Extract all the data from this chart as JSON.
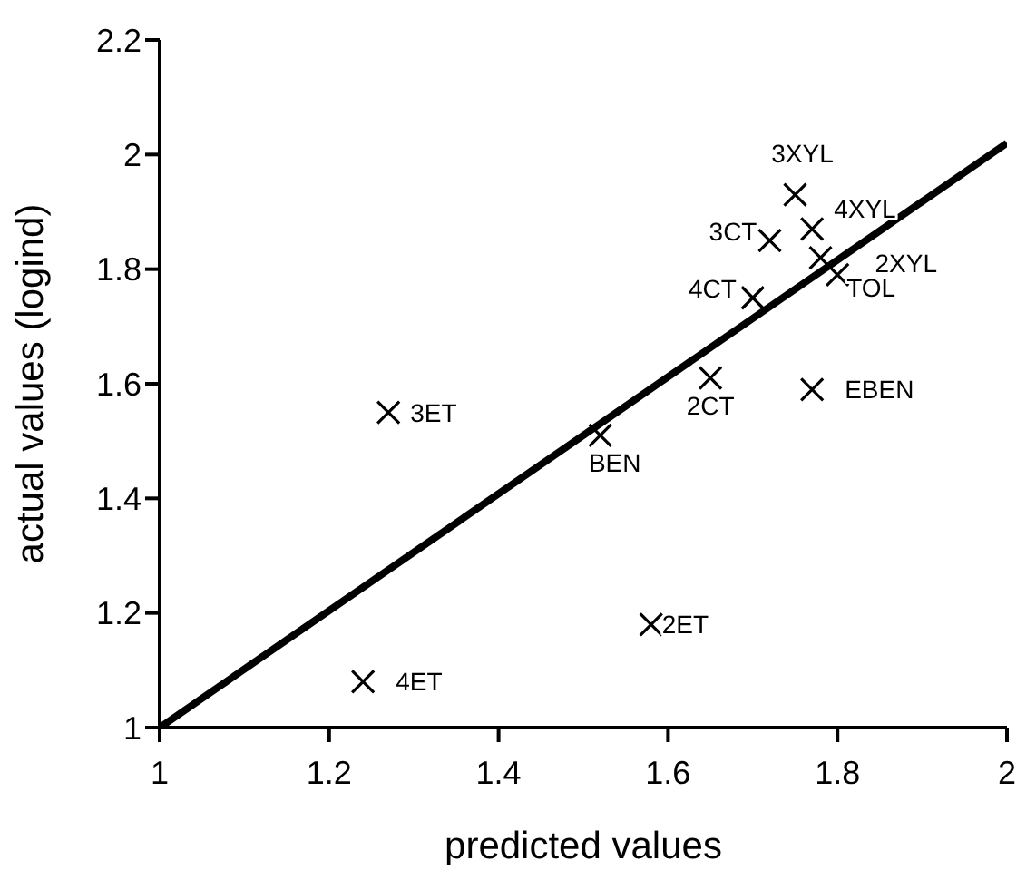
{
  "chart_data": {
    "type": "scatter",
    "xlabel": "predicted values",
    "ylabel": "actual values (logind)",
    "xlim": [
      1,
      2
    ],
    "xticks": [
      1,
      1.2,
      1.4,
      1.6,
      1.8,
      2
    ],
    "ylim": [
      1,
      2.2
    ],
    "yticks": [
      1,
      1.2,
      1.4,
      1.6,
      1.8,
      2,
      2.2
    ],
    "grid": false,
    "legend": false,
    "series": [
      {
        "type": "scatter",
        "color": "#000000",
        "marker": "cross",
        "x": [
          1.27,
          1.24,
          1.52,
          1.65,
          1.58,
          1.77,
          1.7,
          1.72,
          1.75,
          1.77,
          1.78,
          1.8
        ],
        "values": [
          1.55,
          1.08,
          1.51,
          1.61,
          1.18,
          1.59,
          1.75,
          1.85,
          1.93,
          1.87,
          1.82,
          1.79
        ]
      },
      {
        "type": "line",
        "color": "#000000",
        "marker": "none",
        "line_style": "solid",
        "x": [
          1,
          2
        ],
        "values": [
          1,
          2.02
        ]
      }
    ],
    "annotations": [
      {
        "text": "3ET",
        "x": 1.27,
        "y": 1.55
      },
      {
        "text": "4ET",
        "x": 1.24,
        "y": 1.08
      },
      {
        "text": "BEN",
        "x": 1.52,
        "y": 1.51
      },
      {
        "text": "2CT",
        "x": 1.65,
        "y": 1.61
      },
      {
        "text": "2ET",
        "x": 1.58,
        "y": 1.18
      },
      {
        "text": "EBEN",
        "x": 1.77,
        "y": 1.59
      },
      {
        "text": "4CT",
        "x": 1.7,
        "y": 1.75
      },
      {
        "text": "3CT",
        "x": 1.72,
        "y": 1.85
      },
      {
        "text": "3XYL",
        "x": 1.75,
        "y": 1.93
      },
      {
        "text": "4XYL",
        "x": 1.77,
        "y": 1.87
      },
      {
        "text": "2XYL",
        "x": 1.78,
        "y": 1.82
      },
      {
        "text": "TOL",
        "x": 1.8,
        "y": 1.79
      }
    ]
  }
}
